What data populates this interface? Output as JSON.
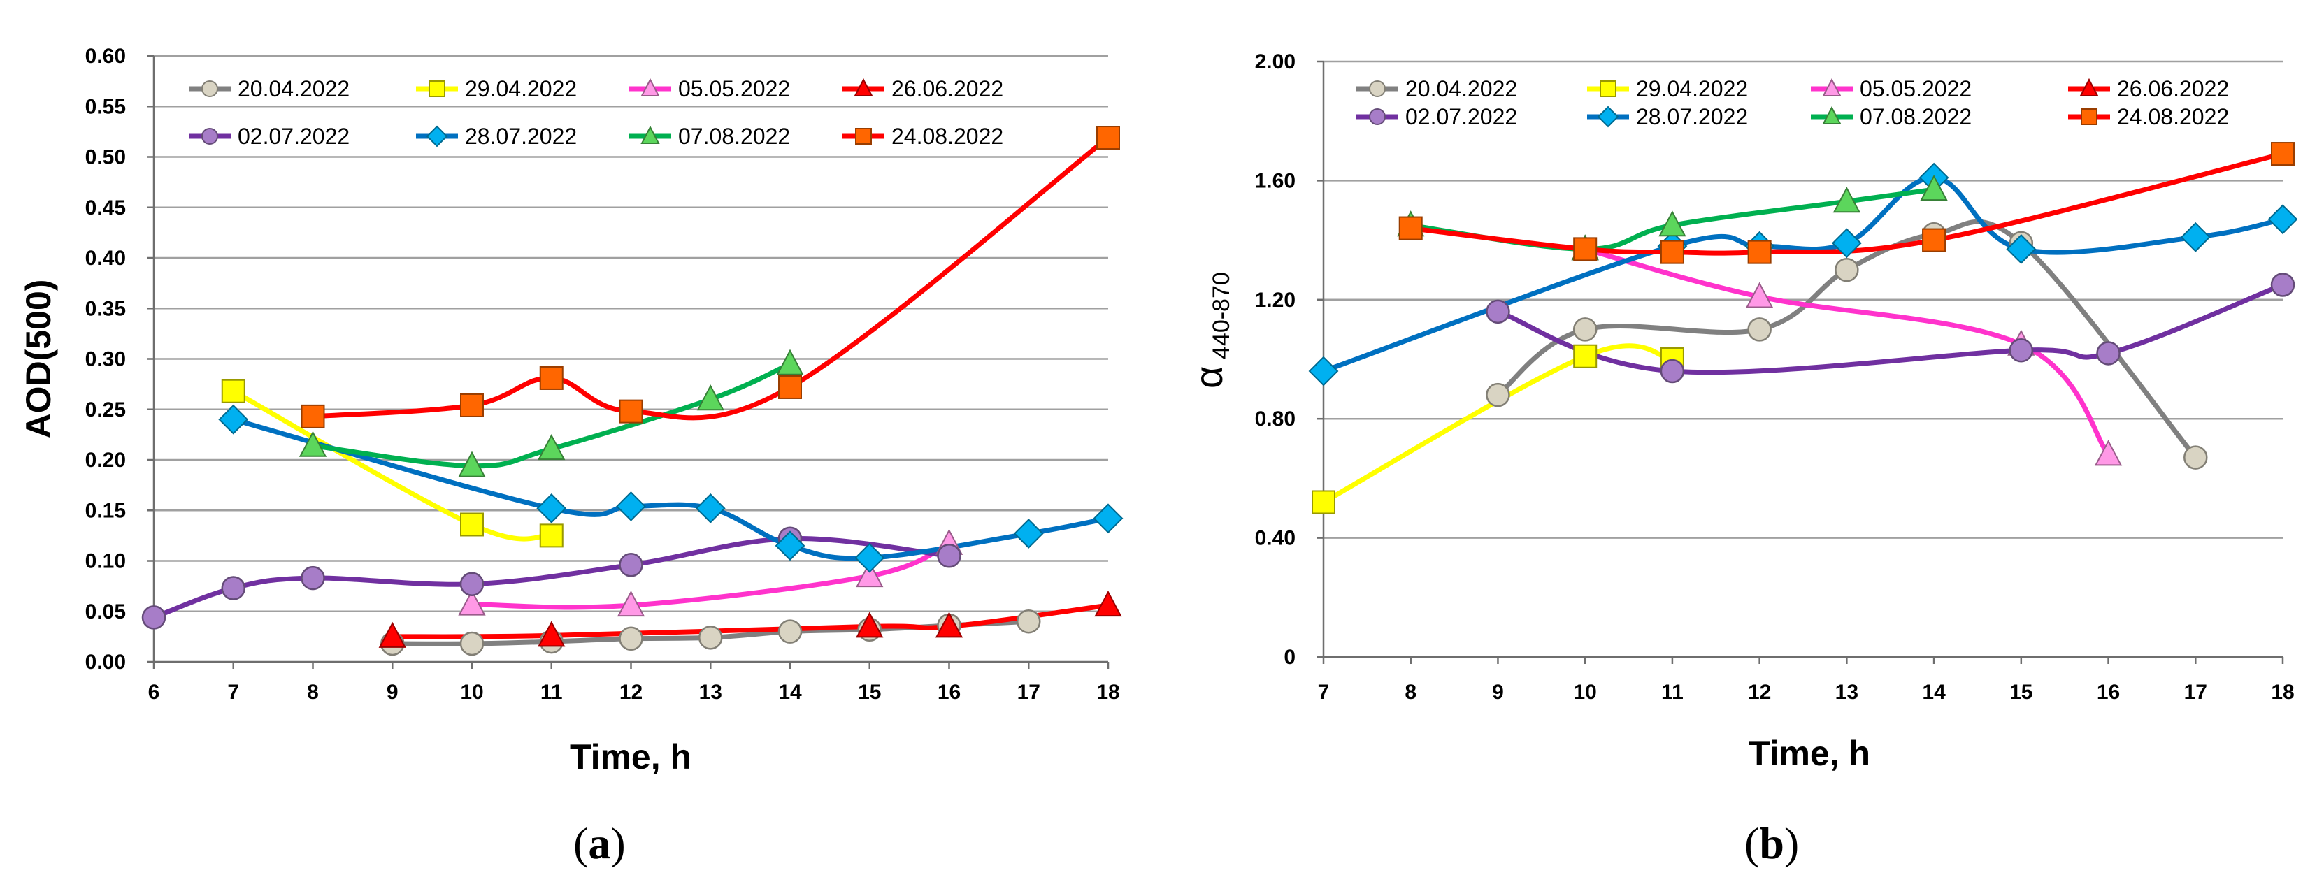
{
  "chart_data": [
    {
      "type": "line",
      "panel_label": "a",
      "xlabel": "Time, h",
      "ylabel": "AOD(500)",
      "xlim": [
        6,
        18
      ],
      "ylim": [
        0,
        0.6
      ],
      "x_ticks": [
        "6",
        "7",
        "8",
        "9",
        "10",
        "11",
        "12",
        "13",
        "14",
        "15",
        "16",
        "17",
        "18"
      ],
      "y_ticks": [
        "0.00",
        "0.05",
        "0.10",
        "0.15",
        "0.20",
        "0.25",
        "0.30",
        "0.35",
        "0.40",
        "0.45",
        "0.50",
        "0.55",
        "0.60"
      ],
      "legend_position": "top",
      "series": [
        {
          "name": "20.04.2022",
          "line_color": "#808080",
          "marker": "circle",
          "marker_color": "#d9d4c3",
          "x": [
            9,
            10,
            11,
            12,
            13,
            14,
            15,
            16,
            17
          ],
          "y": [
            0.018,
            0.018,
            0.02,
            0.023,
            0.024,
            0.03,
            0.032,
            0.036,
            0.04
          ]
        },
        {
          "name": "29.04.2022",
          "line_color": "#ffff00",
          "marker": "square",
          "marker_color": "#ffff00",
          "x": [
            7,
            10,
            11
          ],
          "y": [
            0.268,
            0.136,
            0.125
          ]
        },
        {
          "name": "05.05.2022",
          "line_color": "#ff33cc",
          "marker": "triangle",
          "marker_color": "#ff99e6",
          "x": [
            10,
            12,
            15,
            16
          ],
          "y": [
            0.057,
            0.056,
            0.085,
            0.117
          ]
        },
        {
          "name": "26.06.2022",
          "line_color": "#ff0000",
          "marker": "triangle",
          "marker_color": "#ff0000",
          "x": [
            9,
            11,
            15,
            16,
            18
          ],
          "y": [
            0.025,
            0.026,
            0.035,
            0.035,
            0.056
          ]
        },
        {
          "name": "02.07.2022",
          "line_color": "#7030a0",
          "marker": "circle",
          "marker_color": "#a77dc8",
          "x": [
            6,
            7,
            8,
            10,
            12,
            14,
            16
          ],
          "y": [
            0.044,
            0.073,
            0.083,
            0.077,
            0.096,
            0.122,
            0.105
          ]
        },
        {
          "name": "28.07.2022",
          "line_color": "#0070c0",
          "marker": "diamond",
          "marker_color": "#00b0f0",
          "x": [
            7,
            11,
            12,
            13,
            14,
            15,
            17,
            18
          ],
          "y": [
            0.24,
            0.152,
            0.154,
            0.152,
            0.115,
            0.103,
            0.127,
            0.142
          ]
        },
        {
          "name": "07.08.2022",
          "line_color": "#00b050",
          "marker": "triangle",
          "marker_color": "#5cd65c",
          "x": [
            8,
            10,
            11,
            13,
            14
          ],
          "y": [
            0.214,
            0.194,
            0.211,
            0.26,
            0.295
          ]
        },
        {
          "name": "24.08.2022",
          "line_color": "#ff0000",
          "marker": "square",
          "marker_color": "#ff6600",
          "x": [
            8,
            10,
            11,
            12,
            14,
            18
          ],
          "y": [
            0.243,
            0.254,
            0.281,
            0.248,
            0.272,
            0.519
          ]
        }
      ]
    },
    {
      "type": "line",
      "panel_label": "b",
      "xlabel": "Time, h",
      "ylabel": "α",
      "ylabel_subscript": "440-870",
      "xlim": [
        7,
        18
      ],
      "ylim": [
        0,
        2.0
      ],
      "x_ticks": [
        "7",
        "8",
        "9",
        "10",
        "11",
        "12",
        "13",
        "14",
        "15",
        "16",
        "17",
        "18"
      ],
      "y_ticks": [
        "0",
        "0.40",
        "0.80",
        "1.20",
        "1.60",
        "2.00"
      ],
      "legend_position": "top",
      "series": [
        {
          "name": "20.04.2022",
          "line_color": "#808080",
          "marker": "circle",
          "marker_color": "#d9d4c3",
          "x": [
            9,
            10,
            12,
            13,
            14,
            15,
            17
          ],
          "y": [
            0.88,
            1.1,
            1.1,
            1.3,
            1.42,
            1.39,
            0.67
          ]
        },
        {
          "name": "29.04.2022",
          "line_color": "#ffff00",
          "marker": "square",
          "marker_color": "#ffff00",
          "x": [
            7,
            10,
            11
          ],
          "y": [
            0.52,
            1.01,
            1.0
          ]
        },
        {
          "name": "05.05.2022",
          "line_color": "#ff33cc",
          "marker": "triangle",
          "marker_color": "#ff99e6",
          "x": [
            10,
            12,
            15,
            16
          ],
          "y": [
            1.37,
            1.21,
            1.05,
            0.68
          ]
        },
        {
          "name": "26.06.2022",
          "line_color": "#ff0000",
          "marker": "triangle",
          "marker_color": "#ff0000",
          "x": [],
          "y": []
        },
        {
          "name": "02.07.2022",
          "line_color": "#7030a0",
          "marker": "circle",
          "marker_color": "#a77dc8",
          "x": [
            9,
            11,
            15,
            16,
            18
          ],
          "y": [
            1.16,
            0.96,
            1.03,
            1.02,
            1.25
          ]
        },
        {
          "name": "28.07.2022",
          "line_color": "#0070c0",
          "marker": "diamond",
          "marker_color": "#00b0f0",
          "x": [
            7,
            11,
            12,
            13,
            14,
            15,
            17,
            18
          ],
          "y": [
            0.96,
            1.38,
            1.38,
            1.39,
            1.61,
            1.37,
            1.41,
            1.47
          ]
        },
        {
          "name": "07.08.2022",
          "line_color": "#00b050",
          "marker": "triangle",
          "marker_color": "#5cd65c",
          "x": [
            8,
            10,
            11,
            13,
            14
          ],
          "y": [
            1.45,
            1.37,
            1.45,
            1.53,
            1.57
          ]
        },
        {
          "name": "24.08.2022",
          "line_color": "#ff0000",
          "marker": "square",
          "marker_color": "#ff6600",
          "x": [
            8,
            10,
            11,
            12,
            14,
            18
          ],
          "y": [
            1.44,
            1.37,
            1.36,
            1.36,
            1.4,
            1.69
          ]
        }
      ]
    }
  ]
}
